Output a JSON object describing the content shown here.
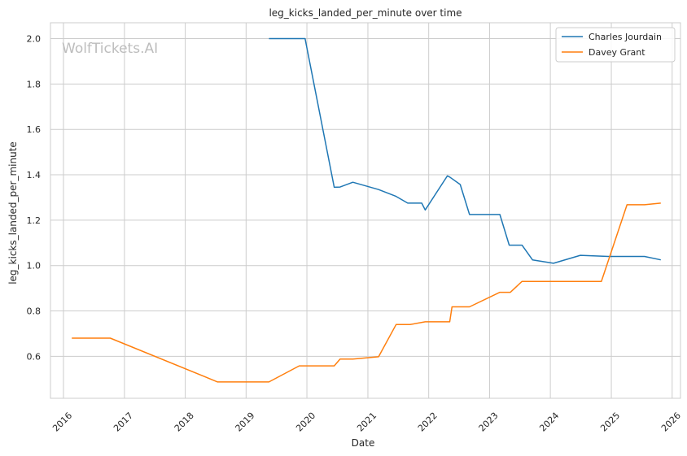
{
  "chart_data": {
    "type": "line",
    "title": "leg_kicks_landed_per_minute over time",
    "xlabel": "Date",
    "ylabel": "leg_kicks_landed_per_minute",
    "watermark": "WolfTickets.AI",
    "x_ticks": [
      "2016",
      "2017",
      "2018",
      "2019",
      "2020",
      "2021",
      "2022",
      "2023",
      "2024",
      "2025",
      "2026"
    ],
    "y_ticks": [
      "0.6",
      "0.8",
      "1.0",
      "1.2",
      "1.4",
      "1.6",
      "1.8",
      "2.0"
    ],
    "xlim": [
      "2015-10-15",
      "2026-02-20"
    ],
    "ylim": [
      0.415,
      2.07
    ],
    "grid": true,
    "legend_position": "top-right",
    "series": [
      {
        "name": "Charles Jourdain",
        "color": "#1f77b4",
        "points": [
          [
            "2019-05-18",
            2.0
          ],
          [
            "2019-12-21",
            2.0
          ],
          [
            "2020-06-13",
            1.345
          ],
          [
            "2020-07-18",
            1.346
          ],
          [
            "2020-10-03",
            1.367
          ],
          [
            "2021-03-06",
            1.335
          ],
          [
            "2021-06-19",
            1.305
          ],
          [
            "2021-08-28",
            1.275
          ],
          [
            "2021-11-20",
            1.275
          ],
          [
            "2021-12-11",
            1.245
          ],
          [
            "2022-04-23",
            1.395
          ],
          [
            "2022-05-07",
            1.39
          ],
          [
            "2022-07-09",
            1.357
          ],
          [
            "2022-09-03",
            1.225
          ],
          [
            "2023-03-04",
            1.225
          ],
          [
            "2023-04-29",
            1.09
          ],
          [
            "2023-07-15",
            1.09
          ],
          [
            "2023-09-16",
            1.025
          ],
          [
            "2024-01-20",
            1.01
          ],
          [
            "2024-06-29",
            1.045
          ],
          [
            "2024-12-14",
            1.04
          ],
          [
            "2025-07-19",
            1.04
          ],
          [
            "2025-10-25",
            1.025
          ]
        ]
      },
      {
        "name": "Davey Grant",
        "color": "#ff7f0e",
        "points": [
          [
            "2016-02-20",
            0.68
          ],
          [
            "2016-10-08",
            0.68
          ],
          [
            "2018-07-14",
            0.487
          ],
          [
            "2019-05-18",
            0.487
          ],
          [
            "2019-11-16",
            0.558
          ],
          [
            "2020-06-13",
            0.558
          ],
          [
            "2020-07-18",
            0.588
          ],
          [
            "2020-10-03",
            0.588
          ],
          [
            "2021-03-06",
            0.598
          ],
          [
            "2021-06-19",
            0.74
          ],
          [
            "2021-09-11",
            0.74
          ],
          [
            "2021-12-11",
            0.752
          ],
          [
            "2022-05-07",
            0.752
          ],
          [
            "2022-05-21",
            0.818
          ],
          [
            "2022-09-03",
            0.818
          ],
          [
            "2023-03-04",
            0.882
          ],
          [
            "2023-05-06",
            0.882
          ],
          [
            "2023-07-15",
            0.93
          ],
          [
            "2024-11-02",
            0.93
          ],
          [
            "2025-04-05",
            1.268
          ],
          [
            "2025-07-19",
            1.268
          ],
          [
            "2025-10-25",
            1.275
          ]
        ]
      }
    ]
  }
}
